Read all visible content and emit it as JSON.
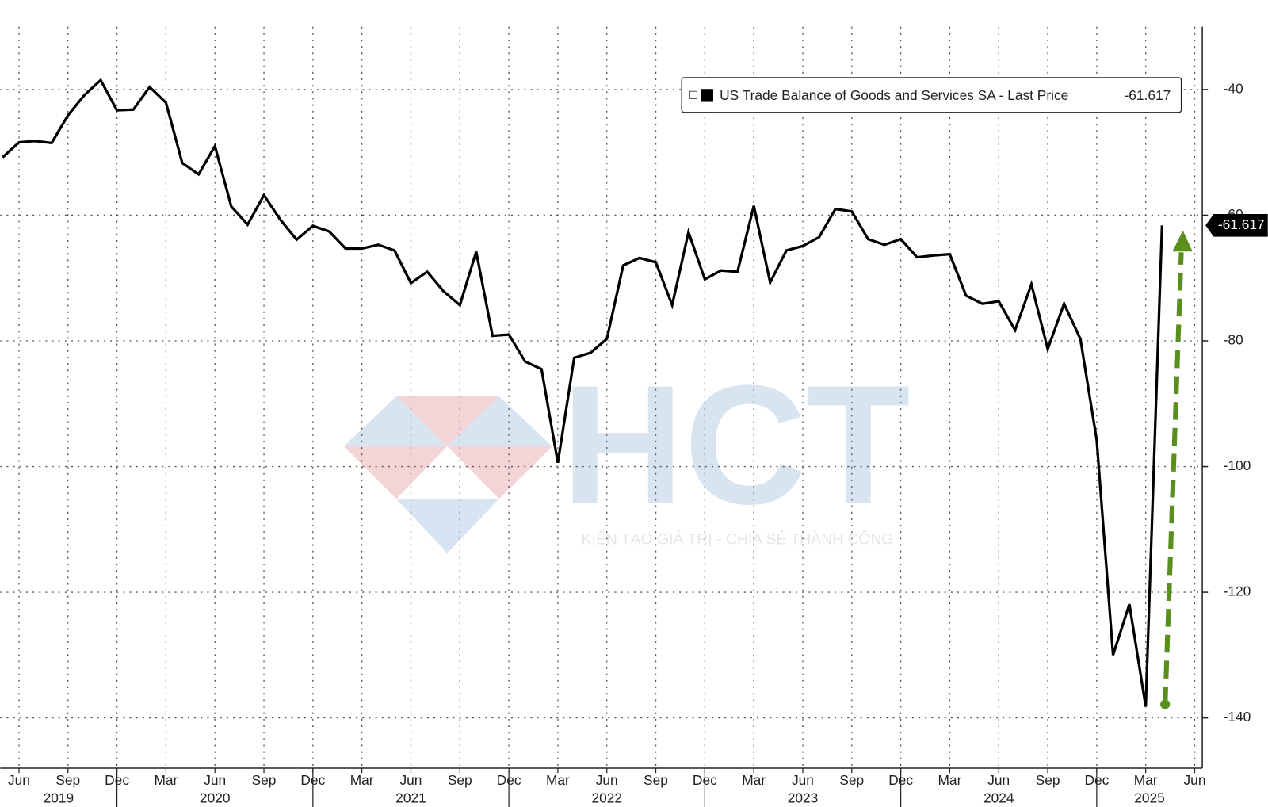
{
  "chart_data": {
    "type": "line",
    "categories": [
      null,
      "Jun",
      null,
      null,
      "Sep",
      null,
      null,
      "Dec",
      null,
      null,
      "Mar",
      null,
      null,
      "Jun",
      null,
      null,
      "Sep",
      null,
      null,
      "Dec",
      null,
      null,
      "Mar",
      null,
      null,
      "Jun",
      null,
      null,
      "Sep",
      null,
      null,
      "Dec",
      null,
      null,
      "Mar",
      null,
      null,
      "Jun",
      null,
      null,
      "Sep",
      null,
      null,
      "Dec",
      null,
      null,
      "Mar",
      null,
      null,
      "Jun",
      null,
      null,
      "Sep",
      null,
      null,
      "Dec",
      null,
      null,
      "Mar",
      null,
      null,
      "Jun",
      null,
      null,
      "Sep",
      null,
      null,
      "Dec",
      null,
      null,
      "Mar",
      null,
      null,
      "Jun"
    ],
    "x_years": [
      "2019",
      "2020",
      "2021",
      "2022",
      "2023",
      "2024",
      "2025"
    ],
    "series": [
      {
        "name": "US Trade Balance of Goods and Services SA - Last Price",
        "color": "#000000",
        "values": [
          -50.8,
          -48.4,
          -48.2,
          -48.5,
          -44.1,
          -40.9,
          -38.5,
          -43.3,
          -43.2,
          -39.6,
          -42.1,
          -51.7,
          -53.5,
          -49.0,
          -58.6,
          -61.5,
          -56.8,
          -60.7,
          -63.9,
          -61.7,
          -62.6,
          -65.3,
          -65.3,
          -64.7,
          -65.6,
          -70.8,
          -69.0,
          -72.1,
          -74.3,
          -65.8,
          -79.2,
          -79.0,
          -83.3,
          -84.5,
          -99.4,
          -82.7,
          -81.9,
          -79.7,
          -68.0,
          -66.8,
          -67.5,
          -74.3,
          -62.7,
          -70.2,
          -68.8,
          -69.0,
          -58.5,
          -70.7,
          -65.6,
          -64.9,
          -63.5,
          -59.0,
          -59.4,
          -63.8,
          -64.7,
          -63.8,
          -66.7,
          -66.4,
          -66.2,
          -72.8,
          -74.1,
          -73.7,
          -78.3,
          -71.0,
          -81.3,
          -74.1,
          -79.7,
          -95.8,
          -130.0,
          -121.9,
          -138.2,
          -61.617,
          null,
          null
        ]
      }
    ],
    "ylim": [
      -148,
      -30
    ],
    "yticks": [
      -40,
      -60,
      -80,
      -100,
      -120,
      -140
    ],
    "grid": true,
    "watermark": {
      "logo": "HCT",
      "tagline": "KIẾN TẠO GIÁ TRỊ - CHIA SẺ THÀNH CÔNG"
    }
  }
}
